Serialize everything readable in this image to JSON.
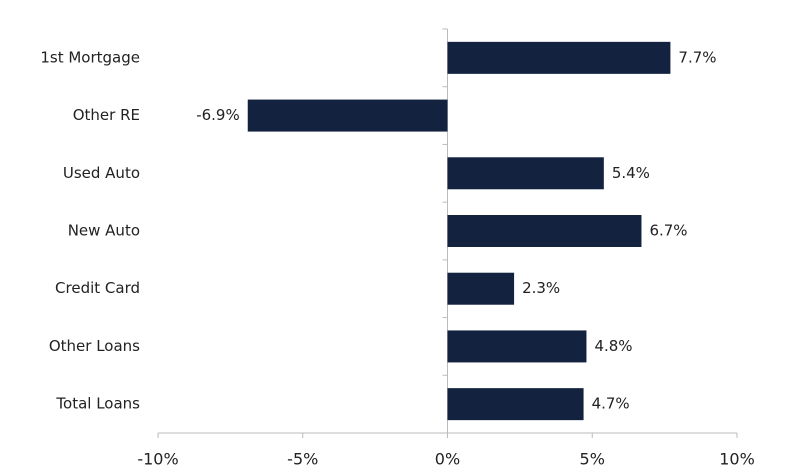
{
  "chart_data": {
    "type": "barh",
    "categories": [
      "1st Mortgage",
      "Other RE",
      "Used Auto",
      "New Auto",
      "Credit Card",
      "Other Loans",
      "Total Loans"
    ],
    "values": [
      7.7,
      -6.9,
      5.4,
      6.7,
      2.3,
      4.8,
      4.7
    ],
    "value_labels": [
      "7.7%",
      "-6.9%",
      "5.4%",
      "6.7%",
      "2.3%",
      "4.8%",
      "4.7%"
    ],
    "color": "#13223f",
    "xlim": [
      -10,
      10
    ],
    "xticks": [
      {
        "value": -10,
        "label": "-10%"
      },
      {
        "value": -5,
        "label": "-5%"
      },
      {
        "value": 0,
        "label": "0%"
      },
      {
        "value": 5,
        "label": "5%"
      },
      {
        "value": 10,
        "label": "10%"
      }
    ],
    "grid": false
  }
}
